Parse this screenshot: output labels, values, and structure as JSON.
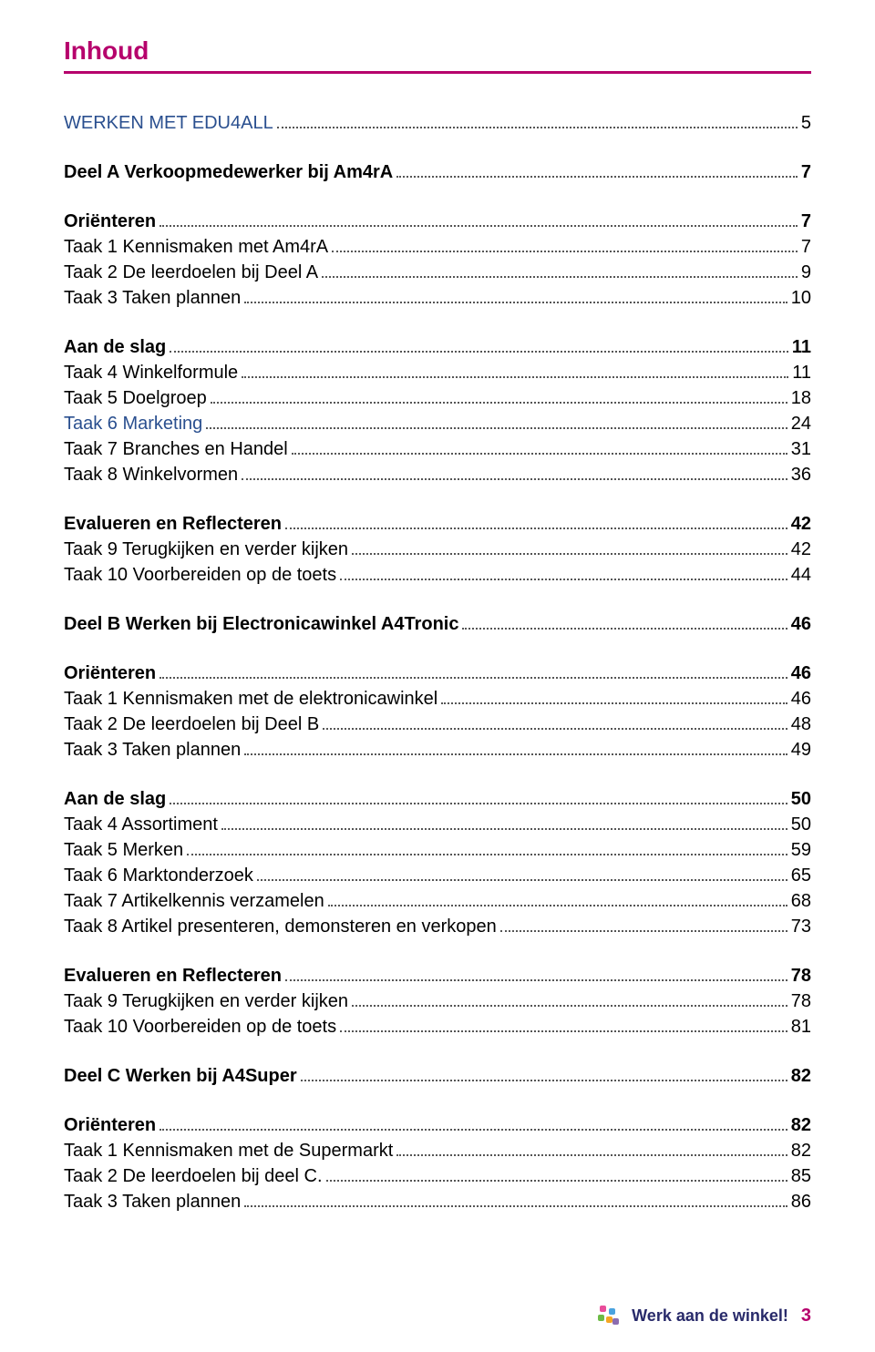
{
  "title": "Inhoud",
  "colors": {
    "accent": "#b6006c",
    "link": "#2a4f8f",
    "text": "#000000",
    "footer_brand": "#282a6a"
  },
  "footer": {
    "brand": "Werk aan de winkel!",
    "page_number": "3"
  },
  "entries": [
    {
      "label": "WERKEN MET EDU4ALL",
      "page": "5",
      "bold": false,
      "link": true,
      "spacer_before": false
    },
    {
      "label": "Deel A Verkoopmedewerker bij Am4rA",
      "page": "7",
      "bold": true,
      "link": false,
      "spacer_before": true
    },
    {
      "label": "Oriënteren",
      "page": "7",
      "bold": true,
      "link": false,
      "spacer_before": true
    },
    {
      "label": "Taak 1 Kennismaken met Am4rA",
      "page": "7",
      "bold": false,
      "link": false,
      "spacer_before": false
    },
    {
      "label": "Taak 2 De leerdoelen bij Deel A",
      "page": "9",
      "bold": false,
      "link": false,
      "spacer_before": false
    },
    {
      "label": "Taak 3 Taken plannen",
      "page": "10",
      "bold": false,
      "link": false,
      "spacer_before": false
    },
    {
      "label": "Aan de slag",
      "page": "11",
      "bold": true,
      "link": false,
      "spacer_before": true
    },
    {
      "label": "Taak 4 Winkelformule",
      "page": "11",
      "bold": false,
      "link": false,
      "spacer_before": false
    },
    {
      "label": "Taak 5 Doelgroep",
      "page": "18",
      "bold": false,
      "link": false,
      "spacer_before": false
    },
    {
      "label": "Taak 6 Marketing",
      "page": "24",
      "bold": false,
      "link": true,
      "spacer_before": false
    },
    {
      "label": "Taak 7 Branches en Handel",
      "page": "31",
      "bold": false,
      "link": false,
      "spacer_before": false
    },
    {
      "label": "Taak 8 Winkelvormen",
      "page": "36",
      "bold": false,
      "link": false,
      "spacer_before": false
    },
    {
      "label": "Evalueren en Reflecteren",
      "page": "42",
      "bold": true,
      "link": false,
      "spacer_before": true
    },
    {
      "label": "Taak 9 Terugkijken en verder kijken",
      "page": "42",
      "bold": false,
      "link": false,
      "spacer_before": false
    },
    {
      "label": "Taak 10 Voorbereiden op de toets",
      "page": "44",
      "bold": false,
      "link": false,
      "spacer_before": false
    },
    {
      "label": "Deel B Werken bij Electronicawinkel A4Tronic",
      "page": "46",
      "bold": true,
      "link": false,
      "spacer_before": true
    },
    {
      "label": "Oriënteren",
      "page": "46",
      "bold": true,
      "link": false,
      "spacer_before": true
    },
    {
      "label": "Taak 1 Kennismaken met de elektronicawinkel",
      "page": "46",
      "bold": false,
      "link": false,
      "spacer_before": false
    },
    {
      "label": "Taak 2 De leerdoelen bij Deel B",
      "page": "48",
      "bold": false,
      "link": false,
      "spacer_before": false
    },
    {
      "label": "Taak 3 Taken plannen",
      "page": "49",
      "bold": false,
      "link": false,
      "spacer_before": false
    },
    {
      "label": "Aan de slag",
      "page": "50",
      "bold": true,
      "link": false,
      "spacer_before": true
    },
    {
      "label": "Taak 4 Assortiment",
      "page": "50",
      "bold": false,
      "link": false,
      "spacer_before": false
    },
    {
      "label": "Taak 5 Merken",
      "page": "59",
      "bold": false,
      "link": false,
      "spacer_before": false
    },
    {
      "label": "Taak 6 Marktonderzoek",
      "page": "65",
      "bold": false,
      "link": false,
      "spacer_before": false
    },
    {
      "label": "Taak 7 Artikelkennis verzamelen",
      "page": "68",
      "bold": false,
      "link": false,
      "spacer_before": false
    },
    {
      "label": "Taak 8 Artikel presenteren, demonsteren en verkopen",
      "page": "73",
      "bold": false,
      "link": false,
      "spacer_before": false
    },
    {
      "label": "Evalueren en Reflecteren",
      "page": "78",
      "bold": true,
      "link": false,
      "spacer_before": true
    },
    {
      "label": "Taak 9 Terugkijken en verder kijken",
      "page": "78",
      "bold": false,
      "link": false,
      "spacer_before": false
    },
    {
      "label": "Taak 10 Voorbereiden op de toets",
      "page": "81",
      "bold": false,
      "link": false,
      "spacer_before": false
    },
    {
      "label": "Deel C Werken bij A4Super",
      "page": "82",
      "bold": true,
      "link": false,
      "spacer_before": true
    },
    {
      "label": "Oriënteren",
      "page": "82",
      "bold": true,
      "link": false,
      "spacer_before": true
    },
    {
      "label": "Taak 1 Kennismaken met de Supermarkt",
      "page": "82",
      "bold": false,
      "link": false,
      "spacer_before": false
    },
    {
      "label": "Taak 2 De leerdoelen bij deel C.",
      "page": "85",
      "bold": false,
      "link": false,
      "spacer_before": false
    },
    {
      "label": "Taak 3 Taken plannen",
      "page": "86",
      "bold": false,
      "link": false,
      "spacer_before": false
    }
  ]
}
